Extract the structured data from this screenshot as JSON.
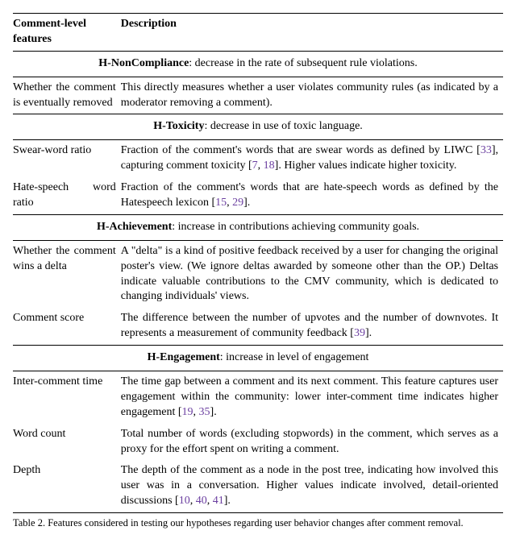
{
  "header": {
    "col1": "Comment-level features",
    "col2": "Description"
  },
  "sections": [
    {
      "heading_bold": "H-NonCompliance",
      "heading_rest": ": decrease in the rate of subsequent rule violations.",
      "rows": [
        {
          "feature": "Whether the comment is eventually removed",
          "desc_pre": "This directly measures whether a user violates community rules (as indicated by a moderator removing a comment).",
          "desc_post": ""
        }
      ]
    },
    {
      "heading_bold": "H-Toxicity",
      "heading_rest": ": decrease in use of toxic language.",
      "rows": [
        {
          "feature": "Swear-word ratio",
          "desc_pre": "Fraction of the comment's words that are swear words as defined by LIWC [",
          "cite1": "33",
          "desc_mid": "], capturing comment toxicity [",
          "cite2": "7",
          "desc_mid2": ", ",
          "cite3": "18",
          "desc_post": "]. Higher values indicate higher toxicity."
        },
        {
          "feature": "Hate-speech word ratio",
          "desc_pre": "Fraction of the comment's words that are hate-speech words as defined by the Hatespeech lexicon [",
          "cite1": "15",
          "desc_mid": ", ",
          "cite2": "29",
          "desc_post": "]."
        }
      ]
    },
    {
      "heading_bold": "H-Achievement",
      "heading_rest": ": increase in contributions achieving community goals.",
      "rows": [
        {
          "feature": "Whether the comment wins a delta",
          "desc_pre": "A \"delta\" is a kind of positive feedback received by a user for changing the original poster's view. (We ignore deltas awarded by someone other than the OP.) Deltas indicate valuable contributions to the CMV community, which is dedicated to changing individuals' views.",
          "desc_post": ""
        },
        {
          "feature": "Comment score",
          "desc_pre": "The difference between the number of upvotes and the number of downvotes. It represents a measurement of community feedback [",
          "cite1": "39",
          "desc_post": "]."
        }
      ]
    },
    {
      "heading_bold": "H-Engagement",
      "heading_rest": ": increase in level of engagement",
      "rows": [
        {
          "feature": "Inter-comment time",
          "desc_pre": "The time gap between a comment and its next comment. This feature captures user engagement within the community: lower inter-comment time indicates higher engagement [",
          "cite1": "19",
          "desc_mid": ", ",
          "cite2": "35",
          "desc_post": "]."
        },
        {
          "feature": "Word count",
          "desc_pre": "Total number of words (excluding stopwords) in the comment, which serves as a proxy for the effort spent on writing a comment.",
          "desc_post": ""
        },
        {
          "feature": "Depth",
          "desc_pre": "The depth of the comment as a node in the post tree, indicating how involved this user was in a conversation. Higher values indicate involved, detail-oriented discussions [",
          "cite1": "10",
          "desc_mid": ", ",
          "cite2": "40",
          "desc_mid2": ", ",
          "cite3": "41",
          "desc_post": "]."
        }
      ]
    }
  ],
  "caption": "Table 2. Features considered in testing our hypotheses regarding user behavior changes after comment removal."
}
